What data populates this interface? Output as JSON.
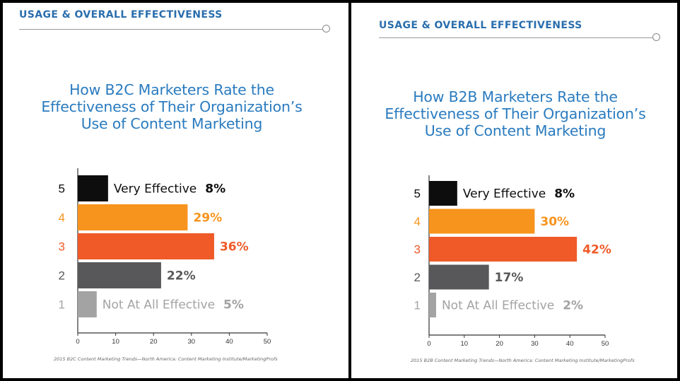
{
  "panels": [
    {
      "section_heading": "USAGE & OVERALL EFFECTIVENESS",
      "chart_title_lines": [
        "How B2C Marketers Rate the",
        "Effectiveness of Their Organization’s",
        "Use of Content Marketing"
      ],
      "source": "2015 B2C Content Marketing Trends—North America: Content Marketing Institute/MarketingProfs"
    },
    {
      "section_heading": "USAGE & OVERALL EFFECTIVENESS",
      "chart_title_lines": [
        "How B2B Marketers Rate the",
        "Effectiveness of Their Organization’s",
        "Use of Content Marketing"
      ],
      "source": "2015 B2B Content Marketing Trends—North America: Content Marketing Institute/MarketingProfs"
    }
  ],
  "chart_data": [
    {
      "type": "bar",
      "orientation": "horizontal",
      "title": "How B2C Marketers Rate the Effectiveness of Their Organization’s Use of Content Marketing",
      "categories": [
        "5",
        "4",
        "3",
        "2",
        "1"
      ],
      "category_labels": [
        "Very Effective",
        "",
        "",
        "",
        "Not At All Effective"
      ],
      "values": [
        8,
        29,
        36,
        22,
        5
      ],
      "value_labels": [
        "8%",
        "29%",
        "36%",
        "22%",
        "5%"
      ],
      "colors": [
        "#0d0d0d",
        "#f7941d",
        "#ef5a28",
        "#58585a",
        "#a3a3a3"
      ],
      "label_colors": [
        "#0d0d0d",
        "#f7941d",
        "#ef5a28",
        "#58585a",
        "#a3a3a3"
      ],
      "xlim": [
        0,
        50
      ],
      "xticks": [
        0,
        10,
        20,
        30,
        40,
        50
      ],
      "grid": false
    },
    {
      "type": "bar",
      "orientation": "horizontal",
      "title": "How B2B Marketers Rate the Effectiveness of Their Organization’s Use of Content Marketing",
      "categories": [
        "5",
        "4",
        "3",
        "2",
        "1"
      ],
      "category_labels": [
        "Very Effective",
        "",
        "",
        "",
        "Not At All Effective"
      ],
      "values": [
        8,
        30,
        42,
        17,
        2
      ],
      "value_labels": [
        "8%",
        "30%",
        "42%",
        "17%",
        "2%"
      ],
      "colors": [
        "#0d0d0d",
        "#f7941d",
        "#ef5a28",
        "#58585a",
        "#a3a3a3"
      ],
      "label_colors": [
        "#0d0d0d",
        "#f7941d",
        "#ef5a28",
        "#58585a",
        "#a3a3a3"
      ],
      "xlim": [
        0,
        50
      ],
      "xticks": [
        0,
        10,
        20,
        30,
        40,
        50
      ],
      "grid": false
    }
  ]
}
